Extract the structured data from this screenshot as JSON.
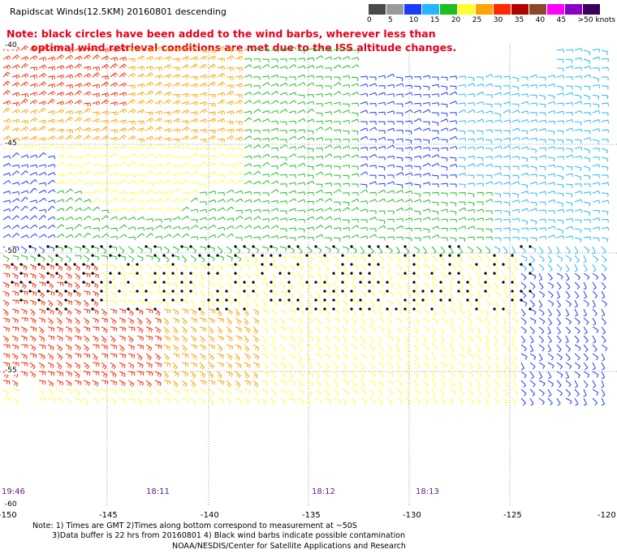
{
  "title": "Rapidscat Winds(12.5KM) 20160801 descending",
  "note_line1": "Note: black circles have been added to the wind barbs, wherever less than",
  "note_line2": "optimal wind retrieval conditions are met due to the ISS altitude changes.",
  "colorbar": {
    "labels": [
      "0",
      "5",
      "10",
      "15",
      "20",
      "25",
      "30",
      "35",
      "40",
      "45",
      ">50 knots"
    ],
    "colors": [
      "#4a4a4a",
      "#9a9a9a",
      "#1a3cff",
      "#26b6ff",
      "#1fbf1f",
      "#ffff33",
      "#ffa500",
      "#ff2a00",
      "#b40000",
      "#8a4a2a",
      "#ff00ff",
      "#8a00c8",
      "#3a0060"
    ]
  },
  "lat_labels": [
    "-40",
    "-45",
    "-50",
    "-55",
    "-60"
  ],
  "lon_labels": [
    "-150",
    "-145",
    "-140",
    "-135",
    "-130",
    "-125",
    "-120"
  ],
  "time_labels": [
    "19:46",
    "18:11",
    "18:12",
    "18:13"
  ],
  "footer": {
    "line1": "Note: 1) Times are GMT 2)Times along bottom correspond to measurement at ~50S",
    "line2": "3)Data buffer is 22 hrs from 20160801 4) Black wind barbs indicate possible contamination",
    "line3": "NOAA/NESDIS/Center for Satellite Applications and Research"
  }
}
